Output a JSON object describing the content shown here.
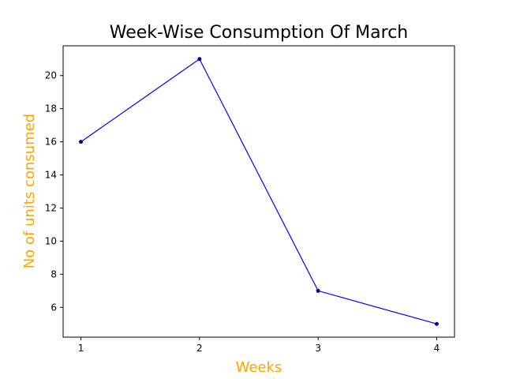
{
  "chart_data": {
    "type": "line",
    "title": "Week-Wise Consumption Of March",
    "xlabel": "Weeks",
    "ylabel": "No of units consumed",
    "x": [
      1,
      2,
      3,
      4
    ],
    "series": [
      {
        "values": [
          16,
          21,
          7,
          5
        ],
        "color": "#0000ff",
        "marker_color": "#00008b"
      }
    ],
    "xticks": [
      "1",
      "2",
      "3",
      "4"
    ],
    "yticks": [
      "6",
      "8",
      "10",
      "12",
      "14",
      "16",
      "18",
      "20"
    ],
    "xlim": [
      0.85,
      4.15
    ],
    "ylim": [
      4.2,
      21.8
    ],
    "grid": false,
    "label_color": "#ffa500"
  }
}
